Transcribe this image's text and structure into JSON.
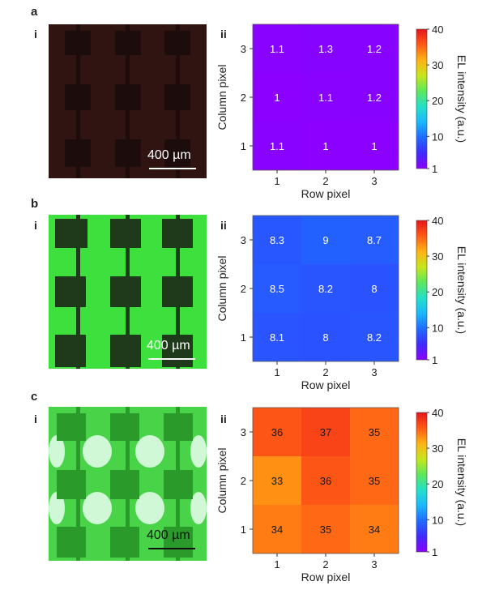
{
  "panels": [
    {
      "letter": "a",
      "photo_label": "i",
      "chart_label": "ii",
      "scale_bar": "400 µm"
    },
    {
      "letter": "b",
      "photo_label": "i",
      "chart_label": "ii",
      "scale_bar": "400 µm"
    },
    {
      "letter": "c",
      "photo_label": "i",
      "chart_label": "ii",
      "scale_bar": "400 µm"
    }
  ],
  "colors": {
    "colorbar_stops": [
      "#8B00FF",
      "#3F2BFF",
      "#1E6BFF",
      "#1AB8FF",
      "#23E0C8",
      "#5CE85A",
      "#C8E61A",
      "#FFB214",
      "#FF5A14",
      "#E8141C"
    ],
    "photo_a": "#2a1210",
    "photo_b": "#2fd62f",
    "photo_c": "#49d349"
  },
  "chart_data": [
    {
      "type": "heatmap",
      "xlabel": "Row pixel",
      "ylabel": "Column pixel",
      "colorbar_label": "EL intensity (a.u.)",
      "x": [
        1,
        2,
        3
      ],
      "y": [
        1,
        2,
        3
      ],
      "values": [
        [
          1.1,
          1,
          1
        ],
        [
          1,
          1.1,
          1.2
        ],
        [
          1.1,
          1.3,
          1.2
        ]
      ],
      "color_range": [
        1,
        40
      ],
      "colorbar_ticks": [
        1,
        10,
        20,
        30,
        40
      ]
    },
    {
      "type": "heatmap",
      "xlabel": "Row pixel",
      "ylabel": "Column pixel",
      "colorbar_label": "EL intensity (a.u.)",
      "x": [
        1,
        2,
        3
      ],
      "y": [
        1,
        2,
        3
      ],
      "values": [
        [
          8.1,
          8,
          8.2
        ],
        [
          8.5,
          8.2,
          8
        ],
        [
          8.3,
          9,
          8.7
        ]
      ],
      "color_range": [
        1,
        40
      ],
      "colorbar_ticks": [
        1,
        10,
        20,
        30,
        40
      ]
    },
    {
      "type": "heatmap",
      "xlabel": "Row pixel",
      "ylabel": "Column pixel",
      "colorbar_label": "EL intensity (a.u.)",
      "x": [
        1,
        2,
        3
      ],
      "y": [
        1,
        2,
        3
      ],
      "values": [
        [
          34,
          35,
          34
        ],
        [
          33,
          36,
          35
        ],
        [
          36,
          37,
          35
        ]
      ],
      "color_range": [
        1,
        40
      ],
      "colorbar_ticks": [
        1,
        10,
        20,
        30,
        40
      ]
    }
  ]
}
